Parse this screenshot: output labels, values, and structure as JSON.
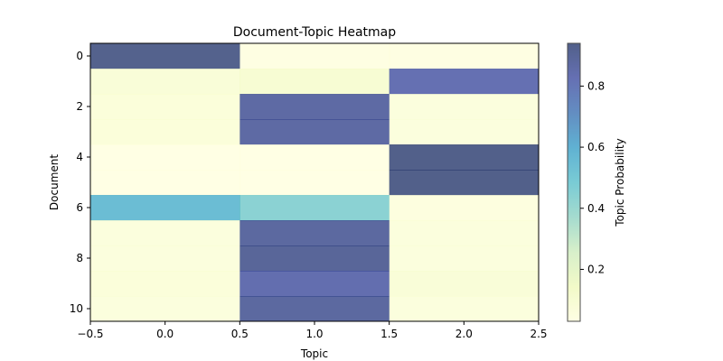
{
  "chart_data": {
    "type": "heatmap",
    "title": "Document-Topic Heatmap",
    "xlabel": "Topic",
    "ylabel": "Document",
    "colorbar_label": "Topic Probability",
    "colormap": "YlGnBu",
    "xlim": [
      -0.5,
      2.5
    ],
    "ylim": [
      10.5,
      -0.5
    ],
    "xticks": [
      -0.5,
      0.0,
      0.5,
      1.0,
      1.5,
      2.0,
      2.5
    ],
    "xtick_labels": [
      "−0.5",
      "0.0",
      "0.5",
      "1.0",
      "1.5",
      "2.0",
      "2.5"
    ],
    "yticks": [
      0,
      2,
      4,
      6,
      8,
      10
    ],
    "ytick_labels": [
      "0",
      "2",
      "4",
      "6",
      "8",
      "10"
    ],
    "colorbar_range": [
      0.03,
      0.94
    ],
    "colorbar_ticks": [
      0.2,
      0.4,
      0.6,
      0.8
    ],
    "colorbar_tick_labels": [
      "0.2",
      "0.4",
      "0.6",
      "0.8"
    ],
    "rows": [
      0,
      1,
      2,
      3,
      4,
      5,
      6,
      7,
      8,
      9,
      10
    ],
    "columns": [
      0,
      1,
      2
    ],
    "values": [
      [
        0.93,
        0.04,
        0.04
      ],
      [
        0.08,
        0.1,
        0.83
      ],
      [
        0.07,
        0.87,
        0.06
      ],
      [
        0.07,
        0.87,
        0.06
      ],
      [
        0.03,
        0.03,
        0.94
      ],
      [
        0.03,
        0.03,
        0.94
      ],
      [
        0.55,
        0.44,
        0.05
      ],
      [
        0.06,
        0.88,
        0.06
      ],
      [
        0.06,
        0.9,
        0.06
      ],
      [
        0.07,
        0.84,
        0.08
      ],
      [
        0.06,
        0.88,
        0.06
      ]
    ],
    "grid": false,
    "colorbar_position": "right"
  }
}
